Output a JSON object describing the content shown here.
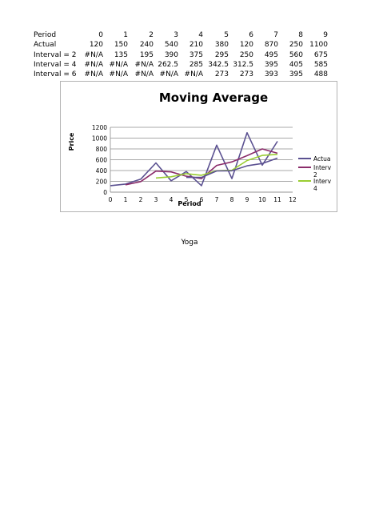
{
  "table": {
    "header": {
      "label": "Period",
      "values": [
        "0",
        "1",
        "2",
        "3",
        "4",
        "5",
        "6",
        "7",
        "8",
        "9"
      ]
    },
    "rows": [
      {
        "label": "Actual",
        "values": [
          "120",
          "150",
          "240",
          "540",
          "210",
          "380",
          "120",
          "870",
          "250",
          "1100"
        ]
      },
      {
        "label": "Interval = 2",
        "values": [
          "#N/A",
          "135",
          "195",
          "390",
          "375",
          "295",
          "250",
          "495",
          "560",
          "675"
        ]
      },
      {
        "label": "Interval = 4",
        "values": [
          "#N/A",
          "#N/A",
          "#N/A",
          "262.5",
          "285",
          "342.5",
          "312.5",
          "395",
          "405",
          "585"
        ]
      },
      {
        "label": "Interval = 6",
        "values": [
          "#N/A",
          "#N/A",
          "#N/A",
          "#N/A",
          "#N/A",
          "273",
          "273",
          "393",
          "395",
          "488"
        ]
      }
    ]
  },
  "chart_data": {
    "type": "line",
    "title": "Moving Average",
    "xlabel": "Period",
    "ylabel": "Price",
    "xlim": [
      0,
      12
    ],
    "ylim": [
      0,
      1200
    ],
    "x_ticks": [
      "0",
      "1",
      "2",
      "3",
      "4",
      "5",
      "6",
      "7",
      "8",
      "9",
      "10",
      "11",
      "12"
    ],
    "y_ticks": [
      "0",
      "200",
      "400",
      "600",
      "800",
      "1000",
      "1200"
    ],
    "grid": true,
    "legend_position": "right",
    "legend": [
      {
        "text": "Actua",
        "color": "#5b5191"
      },
      {
        "text": "Interv 2",
        "color": "#8b2d6b"
      },
      {
        "text": "Interv 4",
        "color": "#9acd32"
      }
    ],
    "series": [
      {
        "color": "#5b5191",
        "x": [
          0,
          1,
          2,
          3,
          4,
          5,
          6,
          7,
          8,
          9,
          10,
          11
        ],
        "y": [
          120,
          150,
          240,
          540,
          210,
          380,
          120,
          870,
          250,
          1100,
          500,
          940
        ]
      },
      {
        "color": "#8b2d6b",
        "x": [
          1,
          2,
          3,
          4,
          5,
          6,
          7,
          8,
          9,
          10,
          11
        ],
        "y": [
          135,
          195,
          390,
          375,
          295,
          250,
          495,
          560,
          675,
          800,
          720
        ]
      },
      {
        "color": "#9acd32",
        "x": [
          3,
          4,
          5,
          6,
          7,
          8,
          9,
          10,
          11
        ],
        "y": [
          262.5,
          285,
          342.5,
          312.5,
          395,
          405,
          585,
          680,
          700
        ]
      },
      {
        "color": "#5b5191",
        "x": [
          5,
          6,
          7,
          8,
          9,
          10,
          11
        ],
        "y": [
          273,
          273,
          393,
          395,
          488,
          530,
          630
        ]
      }
    ]
  },
  "footer": {
    "text": "Yoga"
  }
}
